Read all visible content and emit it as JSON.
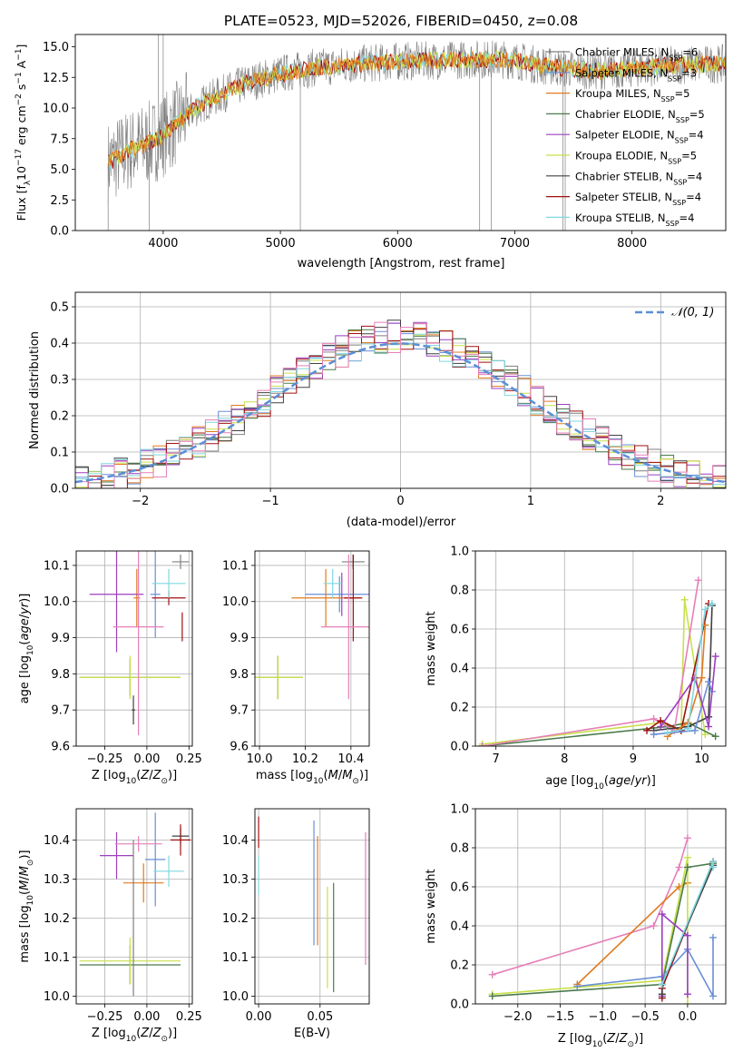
{
  "figure_title": "PLATE=0523, MJD=52026, FIBERID=0450, z=0.08",
  "colors": {
    "Chabrier MILES": "#7f7f7f",
    "Salpeter MILES": "#6a8fd6",
    "Kroupa MILES": "#e07b20",
    "Chabrier ELODIE": "#4a7a4a",
    "Salpeter ELODIE": "#9b3fbf",
    "Kroupa ELODIE": "#c8e04a",
    "Chabrier STELIB": "#404040",
    "Salpeter STELIB": "#a01010",
    "Kroupa STELIB": "#7fd8e0",
    "normal": "#5b8fd6",
    "pink": "#e67fb8"
  },
  "chart_data": [
    {
      "id": "spectrum",
      "type": "line",
      "xlabel": "wavelength [Angstrom, rest frame]",
      "ylabel_main": "Flux [f",
      "ylabel_sub": "λ",
      "ylabel_mid": "10",
      "ylabel_sup1": "−17",
      "ylabel_rest1": " erg cm",
      "ylabel_sup2": "−2",
      "ylabel_rest2": " s",
      "ylabel_sup3": "−1",
      "ylabel_rest3": " A",
      "ylabel_sup4": "−1",
      "ylabel_close": "]",
      "xlim": [
        3250,
        8800
      ],
      "ylim": [
        0,
        16
      ],
      "xticks": [
        "4000",
        "5000",
        "6000",
        "7000",
        "8000"
      ],
      "yticks": [
        "0.0",
        "2.5",
        "5.0",
        "7.5",
        "10.0",
        "12.5",
        "15.0"
      ],
      "legend": [
        {
          "name": "Chabrier MILES",
          "nssp": "6"
        },
        {
          "name": "Salpeter MILES",
          "nssp": "3"
        },
        {
          "name": "Kroupa MILES",
          "nssp": "5"
        },
        {
          "name": "Chabrier ELODIE",
          "nssp": "5"
        },
        {
          "name": "Salpeter ELODIE",
          "nssp": "4"
        },
        {
          "name": "Kroupa ELODIE",
          "nssp": "5"
        },
        {
          "name": "Chabrier STELIB",
          "nssp": "4"
        },
        {
          "name": "Salpeter STELIB",
          "nssp": "4"
        },
        {
          "name": "Kroupa STELIB",
          "nssp": "4"
        }
      ],
      "continuum": [
        [
          3530,
          5.5
        ],
        [
          3700,
          6.5
        ],
        [
          3900,
          7.2
        ],
        [
          4000,
          7.8
        ],
        [
          4200,
          9.5
        ],
        [
          4400,
          10.7
        ],
        [
          4700,
          12.0
        ],
        [
          5000,
          12.8
        ],
        [
          5300,
          13.3
        ],
        [
          5700,
          13.6
        ],
        [
          6000,
          13.8
        ],
        [
          6400,
          13.9
        ],
        [
          6800,
          14.0
        ],
        [
          7000,
          13.9
        ],
        [
          7200,
          13.5
        ],
        [
          7450,
          13.2
        ],
        [
          7700,
          13.0
        ],
        [
          8000,
          13.2
        ],
        [
          8350,
          13.5
        ],
        [
          8800,
          13.6
        ]
      ]
    },
    {
      "id": "residuals",
      "type": "histogram",
      "xlabel": "(data-model)/error",
      "ylabel": "Normed distribution",
      "xlim": [
        -2.5,
        2.5
      ],
      "ylim": [
        0,
        0.54
      ],
      "xticks": [
        "−2",
        "−1",
        "0",
        "1",
        "2"
      ],
      "yticks": [
        "0.0",
        "0.1",
        "0.2",
        "0.3",
        "0.4",
        "0.5"
      ],
      "legend_label": "𝒩(0, 1)",
      "bin_width": 0.1
    },
    {
      "id": "age_vs_Z",
      "type": "errorbar",
      "xlabel": "Z [log",
      "xlabel_sub": "10",
      "xlabel_rest": "(Z/Z",
      "xlabel_sub2": "⊙",
      "xlabel_close": ")]",
      "ylabel": "age  [log",
      "ylabel_sub": "10",
      "ylabel_rest": "(age/yr)]",
      "xlim": [
        -0.42,
        0.27
      ],
      "ylim": [
        9.6,
        10.14
      ],
      "xticks": [
        "−0.25",
        "0.00",
        "0.25"
      ],
      "yticks": [
        "9.6",
        "9.7",
        "9.8",
        "9.9",
        "10.0",
        "10.1"
      ],
      "points": [
        {
          "series": "Chabrier MILES",
          "x": 0.2,
          "y": 10.11,
          "xerr": 0.05,
          "yerr": 0.02
        },
        {
          "series": "Salpeter MILES",
          "x": 0.05,
          "y": 10.02,
          "xerr": 0.03,
          "yerr": 0.12
        },
        {
          "series": "Kroupa MILES",
          "x": -0.06,
          "y": 10.01,
          "xerr": 0.02,
          "yerr": 0.08
        },
        {
          "series": "Chabrier ELODIE",
          "x": -0.1,
          "y": 9.79,
          "xerr": 0.3,
          "yerr": 0.05
        },
        {
          "series": "Salpeter ELODIE",
          "x": -0.18,
          "y": 10.02,
          "xerr": 0.16,
          "yerr": 0.16
        },
        {
          "series": "Kroupa ELODIE",
          "x": -0.1,
          "y": 9.79,
          "xerr": 0.3,
          "yerr": 0.06
        },
        {
          "series": "Chabrier STELIB",
          "x": -0.08,
          "y": 9.7,
          "xerr": 0.01,
          "yerr": 0.04
        },
        {
          "series": "Salpeter STELIB",
          "x": 0.13,
          "y": 10.01,
          "xerr": 0.1,
          "yerr": 0.02
        },
        {
          "series": "Kroupa STELIB",
          "x": 0.13,
          "y": 10.05,
          "xerr": 0.1,
          "yerr": 0.04
        },
        {
          "series": "pink",
          "x": -0.05,
          "y": 9.93,
          "xerr": 0.15,
          "yerr": 0.3
        },
        {
          "series": "Salpeter STELIB",
          "x": 0.21,
          "y": 9.93,
          "xerr": 0.0,
          "yerr": 0.04
        }
      ]
    },
    {
      "id": "age_vs_mass",
      "type": "errorbar",
      "xlabel": "mass [log",
      "xlabel_sub": "10",
      "xlabel_rest": "(M/M",
      "xlabel_sub2": "⊙",
      "xlabel_close": ")]",
      "xlim": [
        9.98,
        10.48
      ],
      "ylim": [
        9.6,
        10.14
      ],
      "xticks": [
        "10.0",
        "10.2",
        "10.4"
      ],
      "yticks": [
        "9.6",
        "9.7",
        "9.8",
        "9.9",
        "10.0",
        "10.1"
      ],
      "points": [
        {
          "series": "Chabrier MILES",
          "x": 10.41,
          "y": 10.11,
          "xerr": 0.05,
          "yerr": 0.02
        },
        {
          "series": "Salpeter MILES",
          "x": 10.35,
          "y": 10.02,
          "xerr": 0.15,
          "yerr": 0.05
        },
        {
          "series": "Kroupa MILES",
          "x": 10.29,
          "y": 10.01,
          "xerr": 0.15,
          "yerr": 0.08
        },
        {
          "series": "Chabrier ELODIE",
          "x": 10.08,
          "y": 9.79,
          "xerr": 0.11,
          "yerr": 0.06
        },
        {
          "series": "Salpeter ELODIE",
          "x": 10.36,
          "y": 10.02,
          "xerr": 0.0,
          "yerr": 0.06
        },
        {
          "series": "Kroupa ELODIE",
          "x": 10.08,
          "y": 9.79,
          "xerr": 0.11,
          "yerr": 0.06
        },
        {
          "series": "Chabrier STELIB",
          "x": 10.41,
          "y": 10.11,
          "xerr": 0.0,
          "yerr": 0.02
        },
        {
          "series": "Salpeter STELIB",
          "x": 10.41,
          "y": 10.01,
          "xerr": 0.04,
          "yerr": 0.12
        },
        {
          "series": "Kroupa STELIB",
          "x": 10.32,
          "y": 10.05,
          "xerr": 0.04,
          "yerr": 0.04
        },
        {
          "series": "pink",
          "x": 10.39,
          "y": 9.93,
          "xerr": 0.12,
          "yerr": 0.2
        }
      ]
    },
    {
      "id": "weight_vs_age",
      "type": "line",
      "xlabel": "age  [log",
      "xlabel_sub": "10",
      "xlabel_rest": "(age/yr)]",
      "ylabel": "mass weight",
      "xlim": [
        6.7,
        10.35
      ],
      "ylim": [
        0,
        1
      ],
      "xticks": [
        "7",
        "8",
        "9",
        "10"
      ],
      "yticks": [
        "0.0",
        "0.2",
        "0.4",
        "0.6",
        "0.8",
        "1.0"
      ],
      "series": [
        {
          "name": "Kroupa ELODIE",
          "x": [
            6.8,
            9.4,
            9.7,
            9.75,
            10.05
          ],
          "y": [
            0.01,
            0.12,
            0.08,
            0.75,
            0.06
          ]
        },
        {
          "name": "Chabrier ELODIE",
          "x": [
            6.8,
            9.5,
            9.8,
            10.2
          ],
          "y": [
            0.0,
            0.1,
            0.12,
            0.05
          ]
        },
        {
          "name": "pink",
          "x": [
            6.8,
            9.3,
            9.6,
            9.95
          ],
          "y": [
            0.0,
            0.14,
            0.08,
            0.85
          ]
        },
        {
          "name": "Salpeter STELIB",
          "x": [
            9.2,
            9.4,
            9.7,
            10.1
          ],
          "y": [
            0.08,
            0.13,
            0.08,
            0.73
          ]
        },
        {
          "name": "Chabrier STELIB",
          "x": [
            9.3,
            9.8,
            10.1,
            10.15
          ],
          "y": [
            0.08,
            0.1,
            0.15,
            0.72
          ]
        },
        {
          "name": "Kroupa MILES",
          "x": [
            9.5,
            9.8,
            10.0,
            10.05
          ],
          "y": [
            0.05,
            0.12,
            0.35,
            0.62
          ]
        },
        {
          "name": "Salpeter MILES",
          "x": [
            9.3,
            9.9,
            10.1,
            10.15
          ],
          "y": [
            0.06,
            0.08,
            0.33,
            0.28
          ]
        },
        {
          "name": "Salpeter ELODIE",
          "x": [
            9.4,
            9.9,
            10.1,
            10.2
          ],
          "y": [
            0.1,
            0.35,
            0.1,
            0.46
          ]
        },
        {
          "name": "Kroupa STELIB",
          "x": [
            9.5,
            9.8,
            10.05,
            10.15
          ],
          "y": [
            0.07,
            0.09,
            0.7,
            0.73
          ]
        }
      ]
    },
    {
      "id": "mass_vs_Z",
      "type": "errorbar",
      "xlabel": "Z [log",
      "xlabel_sub": "10",
      "xlabel_rest": "(Z/Z",
      "xlabel_sub2": "⊙",
      "xlabel_close": ")]",
      "ylabel": "mass [log",
      "ylabel_sub": "10",
      "ylabel_rest": "(M/M",
      "ylabel_sub2": "⊙",
      "ylabel_close": ")]",
      "xlim": [
        -0.42,
        0.27
      ],
      "ylim": [
        9.98,
        10.48
      ],
      "xticks": [
        "−0.25",
        "0.00",
        "0.25"
      ],
      "yticks": [
        "10.0",
        "10.1",
        "10.2",
        "10.3",
        "10.4"
      ],
      "points": [
        {
          "series": "Chabrier STELIB",
          "x": 0.2,
          "y": 10.41,
          "xerr": 0.05,
          "yerr": 0.02
        },
        {
          "series": "Salpeter MILES",
          "x": 0.05,
          "y": 10.35,
          "xerr": 0.06,
          "yerr": 0.12
        },
        {
          "series": "Kroupa MILES",
          "x": -0.02,
          "y": 10.29,
          "xerr": 0.12,
          "yerr": 0.05
        },
        {
          "series": "Chabrier ELODIE",
          "x": -0.1,
          "y": 10.08,
          "xerr": 0.3,
          "yerr": 0.05
        },
        {
          "series": "Salpeter ELODIE",
          "x": -0.18,
          "y": 10.36,
          "xerr": 0.1,
          "yerr": 0.06
        },
        {
          "series": "Kroupa ELODIE",
          "x": -0.1,
          "y": 10.09,
          "xerr": 0.3,
          "yerr": 0.06
        },
        {
          "series": "Chabrier MILES",
          "x": -0.08,
          "y": 10.2,
          "xerr": 0.0,
          "yerr": 0.2
        },
        {
          "series": "Salpeter STELIB",
          "x": 0.2,
          "y": 10.4,
          "xerr": 0.06,
          "yerr": 0.04
        },
        {
          "series": "Kroupa STELIB",
          "x": 0.13,
          "y": 10.32,
          "xerr": 0.09,
          "yerr": 0.04
        },
        {
          "series": "pink",
          "x": -0.05,
          "y": 10.39,
          "xerr": 0.14,
          "yerr": 0.02
        }
      ]
    },
    {
      "id": "mass_vs_ebv",
      "type": "errorbar",
      "xlabel": "E(B-V)",
      "xlim": [
        -0.003,
        0.09
      ],
      "ylim": [
        9.98,
        10.48
      ],
      "xticks": [
        "0.00",
        "0.05"
      ],
      "yticks": [
        "10.0",
        "10.1",
        "10.2",
        "10.3",
        "10.4"
      ],
      "points": [
        {
          "series": "Salpeter STELIB",
          "x": 0.0,
          "y": 10.42,
          "xerr": 0.0,
          "yerr": 0.04
        },
        {
          "series": "Kroupa STELIB",
          "x": 0.0,
          "y": 10.31,
          "xerr": 0.0,
          "yerr": 0.05
        },
        {
          "series": "Salpeter MILES",
          "x": 0.045,
          "y": 10.29,
          "xerr": 0.0,
          "yerr": 0.16
        },
        {
          "series": "Kroupa MILES",
          "x": 0.048,
          "y": 10.27,
          "xerr": 0.0,
          "yerr": 0.14
        },
        {
          "series": "Kroupa ELODIE",
          "x": 0.056,
          "y": 10.15,
          "xerr": 0.0,
          "yerr": 0.13
        },
        {
          "series": "Chabrier ELODIE",
          "x": 0.061,
          "y": 10.15,
          "xerr": 0.0,
          "yerr": 0.14
        },
        {
          "series": "pink",
          "x": 0.087,
          "y": 10.25,
          "xerr": 0.0,
          "yerr": 0.17
        }
      ]
    },
    {
      "id": "weight_vs_Z",
      "type": "line",
      "xlabel": "Z [log",
      "xlabel_sub": "10",
      "xlabel_rest": "(Z/Z",
      "xlabel_sub2": "⊙",
      "xlabel_close": ")]",
      "ylabel": "mass weight",
      "xlim": [
        -2.5,
        0.45
      ],
      "ylim": [
        0,
        1
      ],
      "xticks": [
        "−2.0",
        "−1.5",
        "−1.0",
        "−0.5",
        "0.0"
      ],
      "yticks": [
        "0.0",
        "0.2",
        "0.4",
        "0.6",
        "0.8",
        "1.0"
      ],
      "series": [
        {
          "name": "pink",
          "x": [
            -2.3,
            -0.4,
            -0.1,
            0.0
          ],
          "y": [
            0.15,
            0.4,
            0.7,
            0.85
          ]
        },
        {
          "name": "Kroupa MILES",
          "x": [
            -1.3,
            -0.1,
            0.0
          ],
          "y": [
            0.1,
            0.6,
            0.62
          ]
        },
        {
          "name": "Kroupa ELODIE",
          "x": [
            -2.3,
            -0.3,
            0.0,
            0.0
          ],
          "y": [
            0.05,
            0.12,
            0.75,
            0.0
          ]
        },
        {
          "name": "Chabrier ELODIE",
          "x": [
            -2.3,
            -0.3,
            0.0,
            0.3
          ],
          "y": [
            0.04,
            0.1,
            0.7,
            0.72
          ]
        },
        {
          "name": "Salpeter MILES",
          "x": [
            -1.3,
            -0.3,
            0.0,
            0.3,
            0.3
          ],
          "y": [
            0.09,
            0.14,
            0.28,
            0.04,
            0.34
          ]
        },
        {
          "name": "Salpeter ELODIE",
          "x": [
            -0.3,
            -0.3,
            0.0,
            0.0
          ],
          "y": [
            0.04,
            0.46,
            0.35,
            0.05
          ]
        },
        {
          "name": "Salpeter STELIB",
          "x": [
            -0.3,
            -0.3,
            0.3
          ],
          "y": [
            0.03,
            0.08,
            0.73
          ]
        },
        {
          "name": "Chabrier STELIB",
          "x": [
            -0.3,
            -0.3,
            0.3
          ],
          "y": [
            0.05,
            0.1,
            0.71
          ]
        },
        {
          "name": "Kroupa STELIB",
          "x": [
            -0.3,
            0.3,
            0.3
          ],
          "y": [
            0.1,
            0.73,
            0.7
          ]
        }
      ]
    }
  ]
}
